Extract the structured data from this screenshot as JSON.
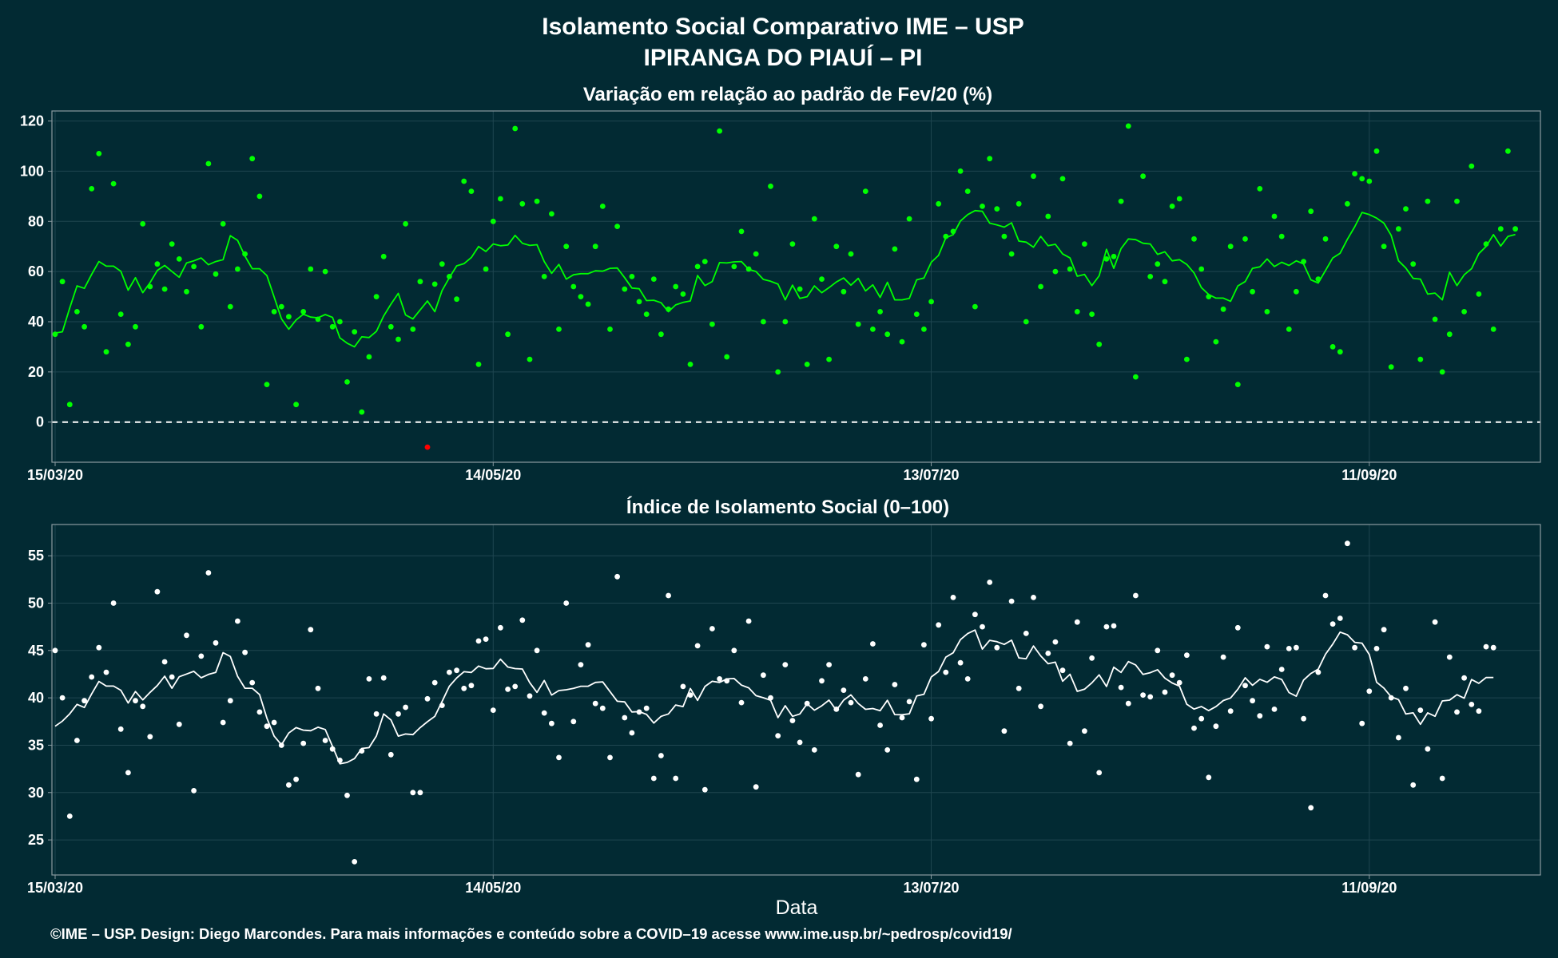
{
  "header": {
    "title_line1": "Isolamento Social Comparativo IME – USP",
    "title_line2": "IPIRANGA DO PIAUÍ – PI"
  },
  "footer": {
    "xlabel": "Data",
    "caption": "©IME – USP. Design: Diego Marcondes. Para mais informações e conteúdo sobre a COVID–19 acesse www.ime.usp.br/~pedrosp/covid19/"
  },
  "colors": {
    "background": "#022a33",
    "panel_border": "#8a9aa0",
    "grid": "#1f4650",
    "variation_series": "#00ff00",
    "negative_series": "#ff0000",
    "index_series": "#ffffff"
  },
  "chart_data": [
    {
      "type": "scatter",
      "title": "Variação em relação ao padrão de Fev/20 (%)",
      "xlabel": "",
      "ylabel": "",
      "x_start": "2020-03-15",
      "x_end": "2020-10-04",
      "xticks": [
        "15/03/20",
        "14/05/20",
        "13/07/20",
        "11/09/20"
      ],
      "yticks": [
        0,
        20,
        40,
        60,
        80,
        100,
        120
      ],
      "ylim": [
        -16,
        124
      ],
      "reference_line": 0,
      "grid": true,
      "points_with_rolling_mean": true,
      "values": [
        35,
        56,
        7,
        44,
        38,
        93,
        107,
        28,
        95,
        43,
        31,
        38,
        79,
        54,
        63,
        53,
        71,
        65,
        52,
        62,
        38,
        103,
        59,
        79,
        46,
        61,
        67,
        105,
        90,
        15,
        44,
        46,
        42,
        7,
        44,
        61,
        41,
        60,
        38,
        40,
        16,
        36,
        4,
        26,
        50,
        66,
        38,
        33,
        79,
        37,
        56,
        -10,
        55,
        63,
        58,
        49,
        96,
        92,
        23,
        61,
        80,
        89,
        35,
        117,
        87,
        25,
        88,
        58,
        83,
        37,
        70,
        54,
        50,
        47,
        70,
        86,
        37,
        78,
        53,
        58,
        48,
        43,
        57,
        35,
        45,
        54,
        51,
        23,
        62,
        64,
        39,
        116,
        26,
        62,
        76,
        61,
        67,
        40,
        94,
        20,
        40,
        71,
        53,
        23,
        81,
        57,
        25,
        70,
        52,
        67,
        39,
        92,
        37,
        44,
        35,
        69,
        32,
        81,
        43,
        37,
        48,
        87,
        74,
        76,
        100,
        92,
        46,
        86,
        105,
        85,
        74,
        67,
        87,
        40,
        98,
        54,
        82,
        60,
        97,
        61,
        44,
        71,
        43,
        31,
        65,
        66,
        88,
        118,
        18,
        98,
        58,
        63,
        56,
        86,
        89,
        25,
        73,
        61,
        50,
        32,
        45,
        70,
        15,
        73,
        52,
        93,
        44,
        82,
        74,
        37,
        52,
        64,
        84,
        57,
        73,
        30,
        28,
        87,
        99,
        97,
        96,
        108,
        70,
        22,
        77,
        85,
        63,
        25,
        88,
        41,
        20,
        35,
        88,
        44,
        102,
        51,
        71,
        37,
        77,
        108,
        77
      ]
    },
    {
      "type": "scatter",
      "title": "Índice de Isolamento Social (0–100)",
      "xlabel": "Data",
      "ylabel": "",
      "x_start": "2020-03-15",
      "x_end": "2020-10-04",
      "xticks": [
        "15/03/20",
        "14/05/20",
        "13/07/20",
        "11/09/20"
      ],
      "yticks": [
        25,
        30,
        35,
        40,
        45,
        50,
        55
      ],
      "ylim": [
        21.3,
        58.3
      ],
      "grid": true,
      "points_with_rolling_mean": true,
      "values": [
        45,
        40,
        27.5,
        35.5,
        39.7,
        42.2,
        45.3,
        42.7,
        50,
        36.7,
        32.1,
        39.7,
        39.1,
        35.9,
        51.2,
        43.8,
        42.2,
        37.2,
        46.6,
        30.2,
        44.4,
        53.2,
        45.8,
        37.4,
        39.7,
        48.1,
        44.8,
        41.6,
        38.5,
        37,
        37.4,
        35,
        30.8,
        31.4,
        35.2,
        47.2,
        41,
        35.5,
        34.6,
        33.4,
        29.7,
        22.7,
        34.4,
        42,
        38.3,
        42.1,
        34,
        38.3,
        39,
        30,
        30,
        39.9,
        41.6,
        39.2,
        42.7,
        42.9,
        41,
        41.3,
        46,
        46.2,
        38.7,
        47.4,
        40.9,
        41.2,
        48.2,
        40.2,
        45,
        38.4,
        37.3,
        33.7,
        50,
        37.5,
        43.5,
        45.6,
        39.4,
        38.9,
        33.7,
        52.8,
        37.9,
        36.3,
        38.5,
        38.9,
        31.5,
        33.9,
        50.8,
        31.5,
        41.2,
        40.3,
        45.5,
        30.3,
        47.3,
        42,
        41.8,
        45,
        39.5,
        48.1,
        30.6,
        42.4,
        40,
        36,
        43.5,
        37.6,
        35.3,
        39.4,
        34.5,
        41.8,
        43.5,
        38.8,
        40.8,
        39.5,
        31.9,
        42,
        45.7,
        37.1,
        34.5,
        41.4,
        37.9,
        39.6,
        31.4,
        45.6,
        37.8,
        47.7,
        42.7,
        50.6,
        43.7,
        42,
        48.8,
        47.5,
        52.2,
        45.3,
        36.5,
        50.2,
        41,
        46.8,
        50.6,
        39.1,
        44.7,
        45.9,
        42.9,
        35.2,
        48,
        36.5,
        44.2,
        32.1,
        47.5,
        47.6,
        41.1,
        39.4,
        50.8,
        40.3,
        40.1,
        45,
        40.6,
        42.4,
        41.6,
        44.5,
        36.8,
        37.8,
        31.6,
        37,
        44.3,
        38.6,
        47.4,
        41.3,
        39.7,
        38.1,
        45.4,
        38.8,
        43,
        45.2,
        45.3,
        37.8,
        28.4,
        42.7,
        50.8,
        47.8,
        48.4,
        56.3,
        45.3,
        37.3,
        40.7,
        45.2,
        47.2,
        40,
        35.8,
        41,
        30.8,
        38.7,
        34.6,
        48,
        31.5,
        44.3,
        38.5,
        42.1,
        39.3,
        38.6,
        45.4,
        45.3
      ]
    }
  ]
}
